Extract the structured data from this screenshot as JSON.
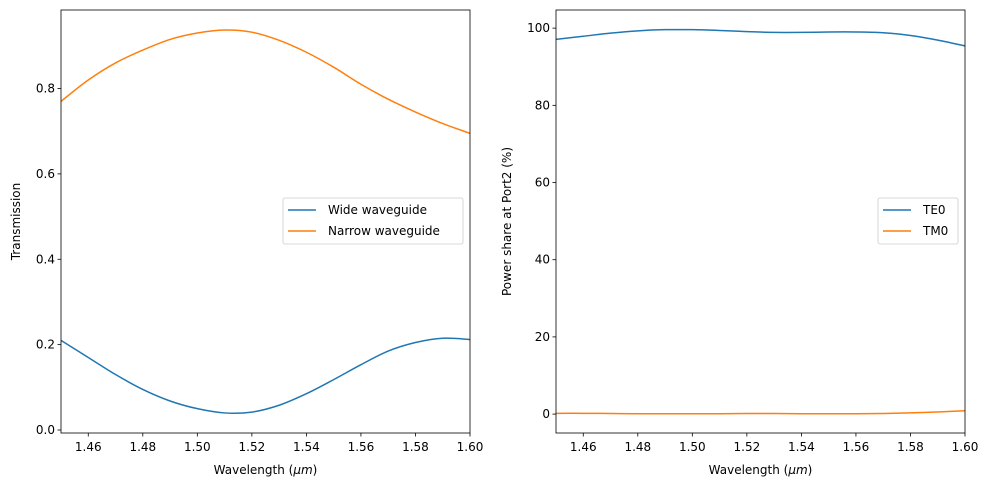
{
  "chart_data": [
    {
      "type": "line",
      "xlabel": "Wavelength (μm)",
      "ylabel": "Transmission",
      "xlim": [
        1.45,
        1.6
      ],
      "ylim": [
        -0.007,
        0.984
      ],
      "xticks": [
        "1.46",
        "1.48",
        "1.50",
        "1.52",
        "1.54",
        "1.56",
        "1.58",
        "1.60"
      ],
      "yticks": [
        "0.0",
        "0.2",
        "0.4",
        "0.6",
        "0.8"
      ],
      "grid": false,
      "legend": "center-right",
      "x": [
        1.45,
        1.46,
        1.47,
        1.48,
        1.49,
        1.5,
        1.51,
        1.52,
        1.53,
        1.54,
        1.55,
        1.56,
        1.57,
        1.58,
        1.59,
        1.6
      ],
      "series": [
        {
          "name": "Wide waveguide",
          "color": "#1f77b4",
          "values": [
            0.21,
            0.17,
            0.13,
            0.095,
            0.068,
            0.05,
            0.04,
            0.042,
            0.058,
            0.085,
            0.118,
            0.153,
            0.185,
            0.205,
            0.215,
            0.212
          ]
        },
        {
          "name": "Narrow waveguide",
          "color": "#ff7f0e",
          "values": [
            0.77,
            0.82,
            0.86,
            0.89,
            0.915,
            0.93,
            0.937,
            0.932,
            0.913,
            0.885,
            0.85,
            0.81,
            0.775,
            0.745,
            0.718,
            0.695
          ]
        }
      ]
    },
    {
      "type": "line",
      "xlabel": "Wavelength (μm)",
      "ylabel": "Power share at Port2 (%)",
      "xlim": [
        1.45,
        1.6
      ],
      "ylim": [
        -4.9,
        104.7
      ],
      "xticks": [
        "1.46",
        "1.48",
        "1.50",
        "1.52",
        "1.54",
        "1.56",
        "1.58",
        "1.60"
      ],
      "yticks": [
        "0",
        "20",
        "40",
        "60",
        "80",
        "100"
      ],
      "grid": false,
      "legend": "center-right",
      "x": [
        1.45,
        1.46,
        1.47,
        1.48,
        1.49,
        1.5,
        1.51,
        1.52,
        1.53,
        1.54,
        1.55,
        1.56,
        1.57,
        1.58,
        1.59,
        1.6
      ],
      "series": [
        {
          "name": "TE0",
          "color": "#1f77b4",
          "values": [
            97.1,
            97.9,
            98.7,
            99.3,
            99.6,
            99.6,
            99.4,
            99.1,
            98.9,
            98.9,
            99.0,
            99.0,
            98.8,
            98.1,
            96.9,
            95.4
          ]
        },
        {
          "name": "TM0",
          "color": "#ff7f0e",
          "values": [
            0.2,
            0.2,
            0.15,
            0.1,
            0.1,
            0.1,
            0.1,
            0.15,
            0.15,
            0.1,
            0.1,
            0.1,
            0.15,
            0.3,
            0.55,
            0.85
          ]
        }
      ]
    }
  ]
}
